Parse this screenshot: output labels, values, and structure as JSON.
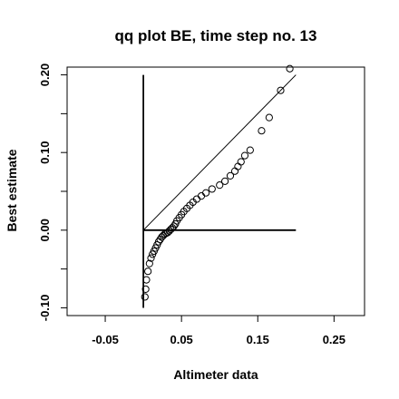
{
  "chart_data": {
    "type": "scatter",
    "title": "qq plot BE, time step no. 13",
    "xlabel": "Altimeter data",
    "ylabel": "Best estimate",
    "xlim": [
      -0.1,
      0.29
    ],
    "ylim": [
      -0.11,
      0.21
    ],
    "xticks": [
      -0.05,
      0.05,
      0.15,
      0.25
    ],
    "xtick_labels": [
      "-0.05",
      "0.05",
      "0.15",
      "0.25"
    ],
    "yticks": [
      -0.1,
      -0.05,
      0.0,
      0.05,
      0.1,
      0.15,
      0.2
    ],
    "ytick_labels": [
      "-0.10",
      "",
      "0.00",
      "",
      "0.10",
      "",
      "0.20"
    ],
    "grid": false,
    "reference_lines": [
      {
        "name": "identity",
        "x": [
          0.0,
          0.2
        ],
        "y": [
          0.0,
          0.2
        ]
      },
      {
        "name": "vertical",
        "x": [
          0.0,
          0.0
        ],
        "y": [
          -0.1,
          0.2
        ]
      },
      {
        "name": "horizontal",
        "x": [
          0.0,
          0.2
        ],
        "y": [
          0.0,
          0.0
        ]
      }
    ],
    "points": [
      [
        0.002,
        -0.086
      ],
      [
        0.003,
        -0.076
      ],
      [
        0.004,
        -0.064
      ],
      [
        0.006,
        -0.053
      ],
      [
        0.008,
        -0.043
      ],
      [
        0.01,
        -0.036
      ],
      [
        0.012,
        -0.031
      ],
      [
        0.014,
        -0.027
      ],
      [
        0.016,
        -0.023
      ],
      [
        0.018,
        -0.019
      ],
      [
        0.02,
        -0.015
      ],
      [
        0.022,
        -0.012
      ],
      [
        0.024,
        -0.009
      ],
      [
        0.026,
        -0.007
      ],
      [
        0.028,
        -0.005
      ],
      [
        0.03,
        -0.004
      ],
      [
        0.032,
        -0.003
      ],
      [
        0.034,
        -0.001
      ],
      [
        0.036,
        0.001
      ],
      [
        0.038,
        0.003
      ],
      [
        0.04,
        0.005
      ],
      [
        0.042,
        0.008
      ],
      [
        0.044,
        0.012
      ],
      [
        0.047,
        0.016
      ],
      [
        0.05,
        0.02
      ],
      [
        0.053,
        0.024
      ],
      [
        0.057,
        0.028
      ],
      [
        0.061,
        0.032
      ],
      [
        0.065,
        0.036
      ],
      [
        0.07,
        0.04
      ],
      [
        0.076,
        0.044
      ],
      [
        0.082,
        0.048
      ],
      [
        0.09,
        0.053
      ],
      [
        0.1,
        0.058
      ],
      [
        0.107,
        0.063
      ],
      [
        0.114,
        0.07
      ],
      [
        0.12,
        0.076
      ],
      [
        0.124,
        0.082
      ],
      [
        0.128,
        0.088
      ],
      [
        0.133,
        0.096
      ],
      [
        0.14,
        0.103
      ],
      [
        0.155,
        0.128
      ],
      [
        0.165,
        0.145
      ],
      [
        0.18,
        0.18
      ],
      [
        0.192,
        0.208
      ]
    ]
  }
}
